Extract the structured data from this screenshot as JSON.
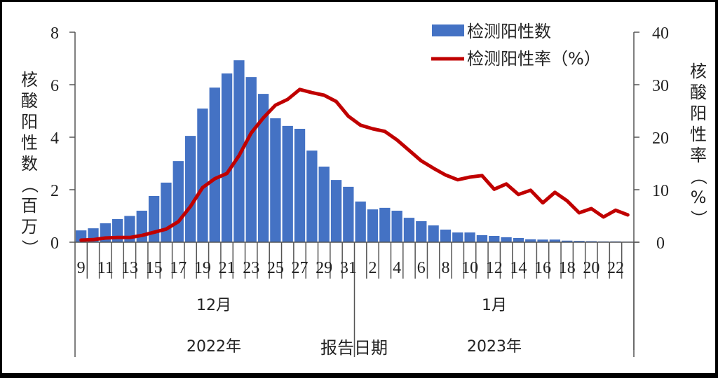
{
  "chart_data": {
    "type": "bar+line",
    "title": "",
    "legend": {
      "position": "top-right",
      "entries": [
        {
          "label": "检测阳性数",
          "type": "bar",
          "color": "#4472C4"
        },
        {
          "label": "检测阳性率（%）",
          "type": "line",
          "color": "#C00000"
        }
      ]
    },
    "ylabel_left": "核酸阳性数（百万）",
    "ylabel_right": "核酸阳性率（%）",
    "xlabel": "报告日期",
    "ylim_left": [
      0,
      8
    ],
    "yticks_left": [
      0,
      2,
      4,
      6,
      8
    ],
    "ylim_right": [
      0,
      40
    ],
    "yticks_right": [
      0,
      10,
      20,
      30,
      40
    ],
    "x_groups": [
      {
        "month": "12月",
        "year": "2022年",
        "days": [
          9,
          10,
          11,
          12,
          13,
          14,
          15,
          16,
          17,
          18,
          19,
          20,
          21,
          22,
          23,
          24,
          25,
          26,
          27,
          28,
          29,
          30,
          31
        ]
      },
      {
        "month": "1月",
        "year": "2023年",
        "days": [
          1,
          2,
          3,
          4,
          5,
          6,
          7,
          8,
          9,
          10,
          11,
          12,
          13,
          14,
          15,
          16,
          17,
          18,
          19,
          20,
          21,
          22,
          23
        ]
      }
    ],
    "tick_labels_shown": [
      "9",
      "11",
      "13",
      "15",
      "17",
      "19",
      "21",
      "23",
      "25",
      "27",
      "29",
      "31",
      "2",
      "4",
      "6",
      "8",
      "10",
      "12",
      "14",
      "16",
      "18",
      "20",
      "22"
    ],
    "categories": [
      "2022-12-09",
      "2022-12-10",
      "2022-12-11",
      "2022-12-12",
      "2022-12-13",
      "2022-12-14",
      "2022-12-15",
      "2022-12-16",
      "2022-12-17",
      "2022-12-18",
      "2022-12-19",
      "2022-12-20",
      "2022-12-21",
      "2022-12-22",
      "2022-12-23",
      "2022-12-24",
      "2022-12-25",
      "2022-12-26",
      "2022-12-27",
      "2022-12-28",
      "2022-12-29",
      "2022-12-30",
      "2022-12-31",
      "2023-01-01",
      "2023-01-02",
      "2023-01-03",
      "2023-01-04",
      "2023-01-05",
      "2023-01-06",
      "2023-01-07",
      "2023-01-08",
      "2023-01-09",
      "2023-01-10",
      "2023-01-11",
      "2023-01-12",
      "2023-01-13",
      "2023-01-14",
      "2023-01-15",
      "2023-01-16",
      "2023-01-17",
      "2023-01-18",
      "2023-01-19",
      "2023-01-20",
      "2023-01-21",
      "2023-01-22",
      "2023-01-23"
    ],
    "series": [
      {
        "name": "检测阳性数",
        "axis": "left",
        "unit": "百万",
        "type": "bar",
        "values": [
          0.45,
          0.53,
          0.72,
          0.88,
          1.0,
          1.2,
          1.76,
          2.27,
          3.09,
          4.05,
          5.09,
          5.89,
          6.43,
          6.93,
          6.29,
          5.65,
          4.72,
          4.43,
          4.32,
          3.49,
          2.88,
          2.37,
          2.11,
          1.55,
          1.25,
          1.31,
          1.2,
          0.93,
          0.8,
          0.64,
          0.48,
          0.37,
          0.37,
          0.27,
          0.24,
          0.19,
          0.16,
          0.11,
          0.1,
          0.1,
          0.06,
          0.05,
          0.04,
          0.03,
          0.03,
          0.02
        ]
      },
      {
        "name": "检测阳性率（%）",
        "axis": "right",
        "unit": "%",
        "type": "line",
        "values": [
          0.4,
          0.5,
          0.8,
          0.9,
          0.9,
          1.3,
          1.9,
          2.5,
          3.9,
          6.8,
          10.4,
          12.1,
          13.1,
          16.5,
          20.8,
          23.7,
          26.1,
          27.2,
          29.1,
          28.5,
          28.0,
          26.8,
          24.0,
          22.3,
          21.6,
          21.1,
          19.5,
          17.5,
          15.5,
          14.1,
          12.8,
          11.9,
          12.4,
          12.7,
          10.1,
          11.1,
          9.1,
          9.9,
          7.5,
          9.5,
          7.9,
          5.6,
          6.4,
          4.8,
          6.1,
          5.2
        ]
      }
    ],
    "grid": false
  }
}
